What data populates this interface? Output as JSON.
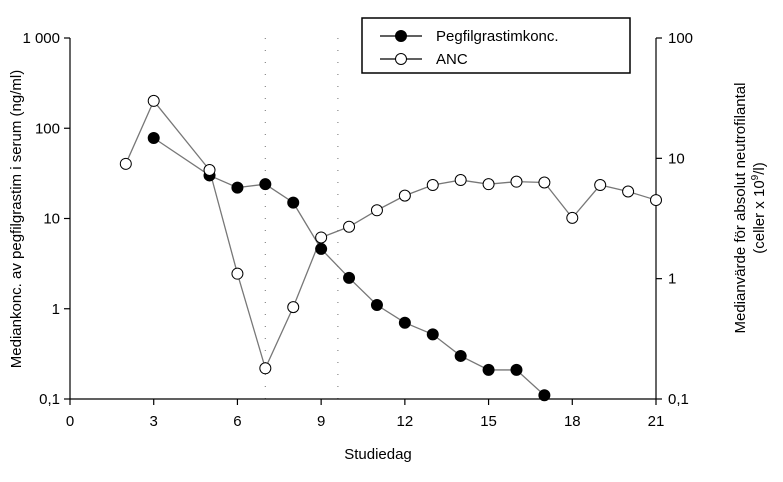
{
  "chart_data": {
    "type": "line",
    "xlabel": "Studiedag",
    "ylabel_left": "Mediankonc. av pegfilgrastim i serum (ng/ml)",
    "ylabel_right_line1": "Medianvärde för absolut neutrofilantal",
    "ylabel_right_line2_prefix": "(celler x 10",
    "ylabel_right_line2_sup": "9",
    "ylabel_right_line2_suffix": "/l)",
    "xlim": [
      0,
      21
    ],
    "x_ticks": [
      "0",
      "3",
      "6",
      "9",
      "12",
      "15",
      "18",
      "21"
    ],
    "y_left_scale": "log",
    "y_left_lim": [
      0.1,
      1000
    ],
    "y_left_ticks": [
      "0,1",
      "1",
      "10",
      "100",
      "1 000"
    ],
    "y_right_scale": "log",
    "y_right_lim": [
      0.1,
      100
    ],
    "y_right_ticks": [
      "0,1",
      "1",
      "10",
      "100"
    ],
    "grid": false,
    "dotted_vertical_lines_at_day": [
      7,
      9.6
    ],
    "legend_position": "top-right",
    "series": [
      {
        "name": "Pegfilgrastimkonc.",
        "axis": "left",
        "marker": "filled-circle",
        "x": [
          3,
          5,
          6,
          7,
          8,
          9,
          10,
          11,
          12,
          13,
          14,
          15,
          16,
          17
        ],
        "y": [
          78,
          30,
          22,
          24,
          15,
          4.6,
          2.2,
          1.1,
          0.7,
          0.52,
          0.3,
          0.21,
          0.21,
          0.11
        ]
      },
      {
        "name": "ANC",
        "axis": "right",
        "marker": "open-circle",
        "x": [
          2,
          3,
          5,
          6,
          7,
          8,
          9,
          10,
          11,
          12,
          13,
          14,
          15,
          16,
          17,
          18,
          19,
          20,
          21
        ],
        "y": [
          9,
          30,
          8,
          1.1,
          0.18,
          0.58,
          2.2,
          2.7,
          3.7,
          4.9,
          6,
          6.6,
          6.1,
          6.4,
          6.3,
          3.2,
          6,
          5.3,
          4.5
        ]
      }
    ]
  }
}
